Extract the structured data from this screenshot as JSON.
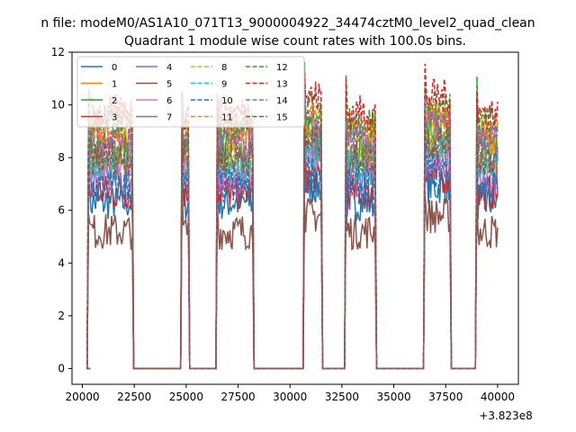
{
  "figure": {
    "suptitle": "n file: modeM0/AS1A10_071T13_9000004922_34474cztM0_level2_quad_clean"
  },
  "chart_data": {
    "type": "line",
    "title": "Quadrant 1 module wise count rates with 100.0s bins.",
    "xlabel": "",
    "ylabel": "",
    "x_offset_label": "+3.823e8",
    "xlim": [
      19500,
      41000
    ],
    "ylim": [
      -0.6,
      12
    ],
    "xticks": [
      20000,
      22500,
      25000,
      27500,
      30000,
      32500,
      35000,
      37500,
      40000
    ],
    "yticks": [
      0,
      2,
      4,
      6,
      8,
      10,
      12
    ],
    "grid": false,
    "legend_position": "upper-left",
    "legend_columns": 4,
    "orbit_segments": [
      {
        "start": 20300,
        "end": 22400
      },
      {
        "start": 24800,
        "end": 25100
      },
      {
        "start": 26500,
        "end": 28200
      },
      {
        "start": 30700,
        "end": 31500
      },
      {
        "start": 32700,
        "end": 34100
      },
      {
        "start": 36500,
        "end": 37700
      },
      {
        "start": 39000,
        "end": 40000
      }
    ],
    "gap_value": 0,
    "series": [
      {
        "name": "0",
        "color": "#1f77b4",
        "dash": "solid",
        "level": 6.3
      },
      {
        "name": "1",
        "color": "#ff7f0e",
        "dash": "solid",
        "level": 8.8
      },
      {
        "name": "2",
        "color": "#2ca02c",
        "dash": "solid",
        "level": 8.3
      },
      {
        "name": "3",
        "color": "#d62728",
        "dash": "solid",
        "level": 6.7
      },
      {
        "name": "4",
        "color": "#9467bd",
        "dash": "solid",
        "level": 7.2
      },
      {
        "name": "5",
        "color": "#8c564b",
        "dash": "solid",
        "level": 5.2
      },
      {
        "name": "6",
        "color": "#e377c2",
        "dash": "solid",
        "level": 7.5
      },
      {
        "name": "7",
        "color": "#7f7f7f",
        "dash": "solid",
        "level": 7.9
      },
      {
        "name": "8",
        "color": "#bcbd22",
        "dash": "dashed",
        "level": 8.1
      },
      {
        "name": "9",
        "color": "#17becf",
        "dash": "dashed",
        "level": 7.6
      },
      {
        "name": "10",
        "color": "#1f77b4",
        "dash": "dashed",
        "level": 6.9
      },
      {
        "name": "11",
        "color": "#ff7f0e",
        "dash": "dashed",
        "level": 9.0
      },
      {
        "name": "12",
        "color": "#2ca02c",
        "dash": "dashed",
        "level": 9.3
      },
      {
        "name": "13",
        "color": "#d62728",
        "dash": "dashed",
        "level": 9.7
      },
      {
        "name": "14",
        "color": "#9467bd",
        "dash": "dashed",
        "level": 8.6
      },
      {
        "name": "15",
        "color": "#8c564b",
        "dash": "dashed",
        "level": 8.0
      }
    ]
  }
}
